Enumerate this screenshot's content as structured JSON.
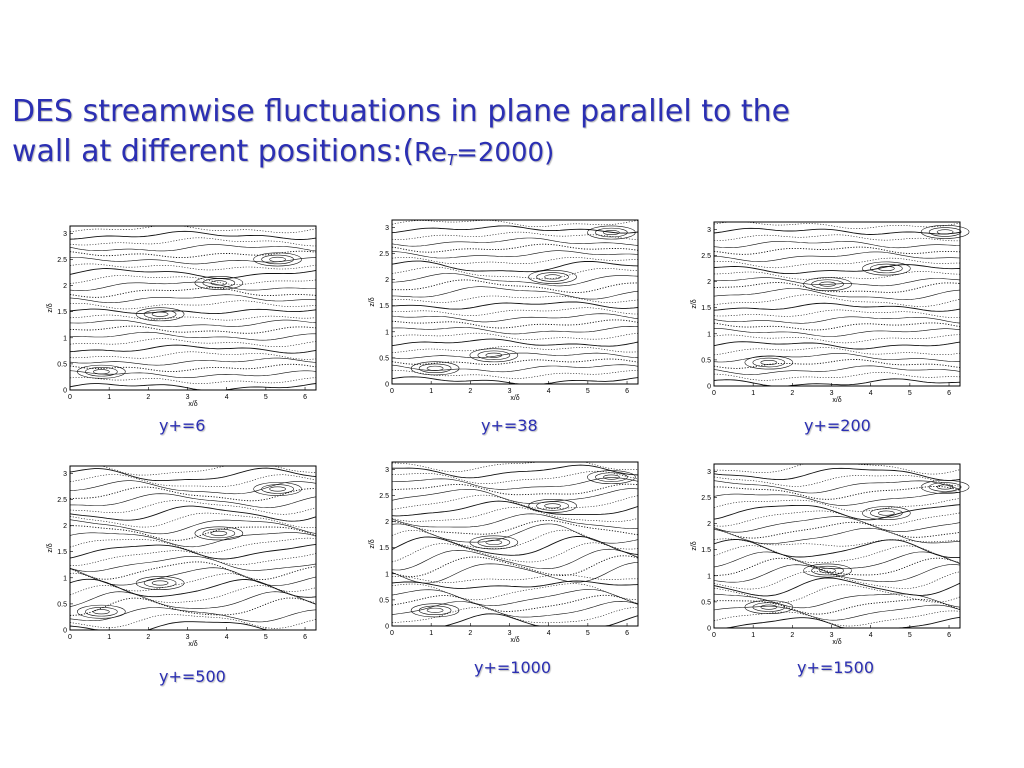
{
  "slide": {
    "title_line1": "DES streamwise fluctuations in plane parallel to the",
    "title_line2_prefix": "wall at different positions:(",
    "title_re": "Re",
    "title_sub": "T",
    "title_suffix": "=2000)"
  },
  "axes": {
    "xlabel": "x/δ",
    "ylabel": "z/δ",
    "x_ticks": [
      "0",
      "1",
      "2",
      "3",
      "4",
      "5",
      "6"
    ],
    "y_ticks": [
      "0",
      "0.5",
      "1",
      "1.5",
      "2",
      "2.5",
      "3"
    ],
    "xlim": [
      0,
      6.28
    ],
    "ylim": [
      0,
      3.14
    ]
  },
  "panels": [
    {
      "id": "p1",
      "caption": "y+=6"
    },
    {
      "id": "p2",
      "caption": "y+=38"
    },
    {
      "id": "p3",
      "caption": "y+=200"
    },
    {
      "id": "p4",
      "caption": "y+=500"
    },
    {
      "id": "p5",
      "caption": "y+=1000"
    },
    {
      "id": "p6",
      "caption": "y+=1500"
    }
  ]
}
